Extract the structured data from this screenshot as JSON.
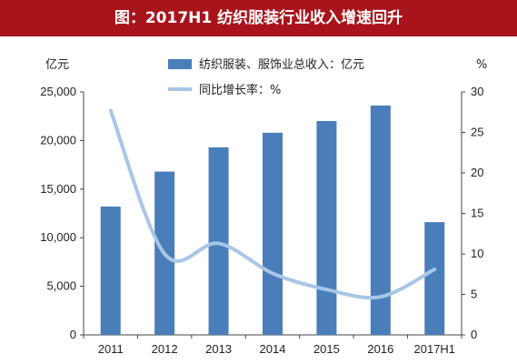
{
  "title": "图：2017H1 纺织服装行业收入增速回升",
  "chart_data": {
    "type": "bar+line",
    "categories": [
      "2011",
      "2012",
      "2013",
      "2014",
      "2015",
      "2016",
      "2017H1"
    ],
    "series": [
      {
        "name": "纺织服装、服饰业总收入：亿元",
        "type": "bar",
        "axis": "left",
        "color": "#4a7ebb",
        "values": [
          13200,
          16800,
          19300,
          20800,
          22000,
          23600,
          11600
        ]
      },
      {
        "name": "同比增长率：%",
        "type": "line",
        "axis": "right",
        "color": "#a9c6e6",
        "values": [
          27.7,
          10.0,
          11.3,
          7.6,
          5.6,
          4.7,
          8.1
        ]
      }
    ],
    "left_axis": {
      "unit": "亿元",
      "range": [
        0,
        25000
      ],
      "ticks": [
        0,
        5000,
        10000,
        15000,
        20000,
        25000
      ],
      "tick_labels": [
        "0",
        "5,000",
        "10,000",
        "15,000",
        "20,000",
        "25,000"
      ]
    },
    "right_axis": {
      "unit": "%",
      "range": [
        0,
        30
      ],
      "ticks": [
        0,
        5,
        10,
        15,
        20,
        25,
        30
      ],
      "tick_labels": [
        "0",
        "5",
        "10",
        "15",
        "20",
        "25",
        "30"
      ]
    },
    "grid": false,
    "legend_position": "top-center"
  }
}
